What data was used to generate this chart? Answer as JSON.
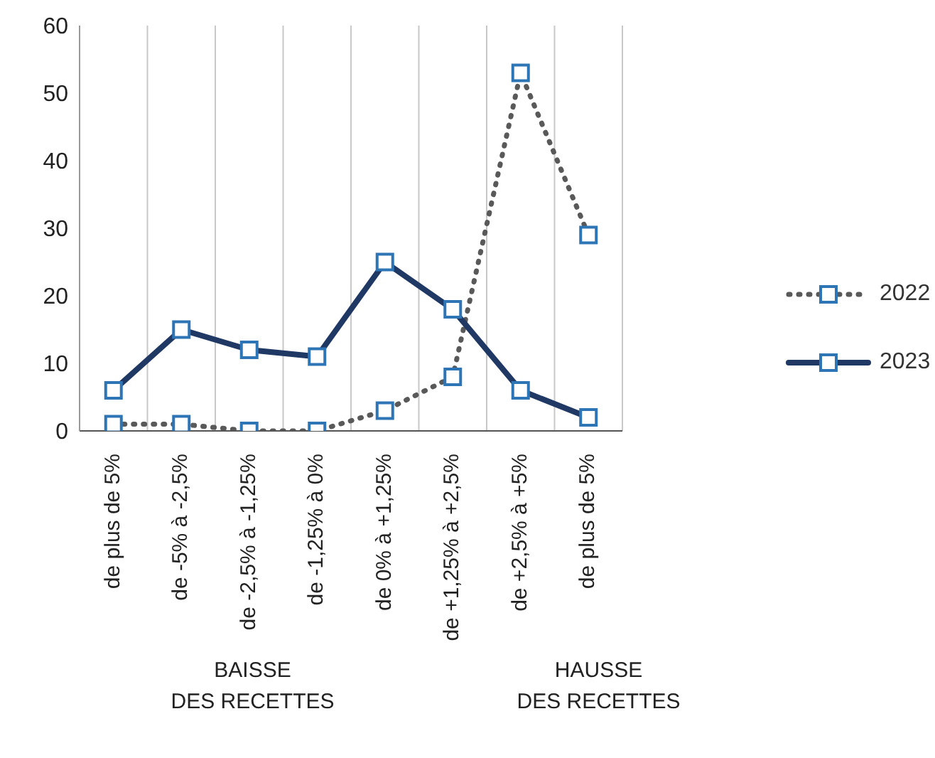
{
  "chart_data": {
    "type": "line",
    "categories": [
      "de plus de 5%",
      "de -5% à -2,5%",
      "de -2,5% à -1,25%",
      "de -1,25% à 0%",
      "de 0% à +1,25%",
      "de +1,25% à +2,5%",
      "de +2,5% à +5%",
      "de plus de 5%"
    ],
    "series": [
      {
        "name": "2022",
        "color": "#595959",
        "line_style": "dotted",
        "values": [
          1,
          1,
          0,
          0,
          3,
          8,
          53,
          29
        ]
      },
      {
        "name": "2023",
        "color": "#1f3864",
        "line_style": "solid",
        "values": [
          6,
          15,
          12,
          11,
          25,
          18,
          6,
          2
        ]
      }
    ],
    "marker": "square",
    "ylim": [
      0,
      60
    ],
    "yticks": [
      0,
      10,
      20,
      30,
      40,
      50,
      60
    ],
    "grid": "x",
    "legend": "right",
    "annotations": [
      "BAISSE\nDES RECETTES",
      "HAUSSE\nDES RECETTES"
    ]
  }
}
